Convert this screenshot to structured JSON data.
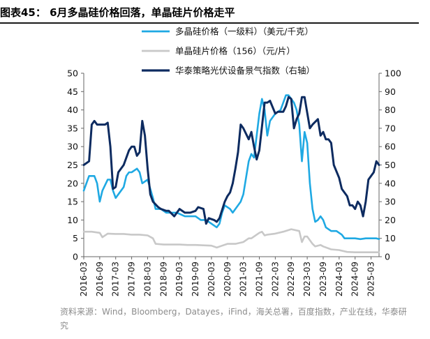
{
  "figure": {
    "title": "图表45： 6月多晶硅价格回落，单晶硅片价格走平",
    "source": "资料来源：Wind，Bloomberg，Datayes，iFind，海关总署，百度指数，产业在线，华泰研究"
  },
  "chart_data": {
    "type": "line",
    "title": "6月多晶硅价格回落，单晶硅片价格走平",
    "xlabel": "",
    "ylabel": "",
    "ylim": [
      0,
      50
    ],
    "y2lim": [
      0,
      100
    ],
    "yticks": [
      0,
      5,
      10,
      15,
      20,
      25,
      30,
      35,
      40,
      45,
      50
    ],
    "y2ticks": [
      0,
      10,
      20,
      30,
      40,
      50,
      60,
      70,
      80,
      90,
      100
    ],
    "xticks": [
      "2016-03",
      "2016-09",
      "2017-03",
      "2017-09",
      "2018-03",
      "2018-09",
      "2019-03",
      "2019-09",
      "2020-03",
      "2020-09",
      "2021-03",
      "2021-09",
      "2022-03",
      "2022-09",
      "2023-03",
      "2023-09",
      "2024-03",
      "2024-09",
      "2025-03"
    ],
    "x_range": [
      "2016-03",
      "2025-06"
    ],
    "legend_position": "top",
    "series": [
      {
        "name": "多晶硅价格（一级料）（美元/千克）",
        "axis": "left",
        "color": "#1fa9e3",
        "points": [
          [
            "2016-03",
            18
          ],
          [
            "2016-05",
            22
          ],
          [
            "2016-07",
            22
          ],
          [
            "2016-08",
            20
          ],
          [
            "2016-09",
            15
          ],
          [
            "2016-10",
            18
          ],
          [
            "2016-12",
            21
          ],
          [
            "2017-01",
            21
          ],
          [
            "2017-02",
            18
          ],
          [
            "2017-03",
            16
          ],
          [
            "2017-05",
            18
          ],
          [
            "2017-06",
            19
          ],
          [
            "2017-07",
            22
          ],
          [
            "2017-08",
            23
          ],
          [
            "2017-09",
            23
          ],
          [
            "2017-11",
            24
          ],
          [
            "2017-12",
            23
          ],
          [
            "2018-01",
            20
          ],
          [
            "2018-03",
            21
          ],
          [
            "2018-05",
            16
          ],
          [
            "2018-06",
            13
          ],
          [
            "2018-08",
            13
          ],
          [
            "2018-10",
            12
          ],
          [
            "2018-12",
            12
          ],
          [
            "2019-02",
            12
          ],
          [
            "2019-05",
            11
          ],
          [
            "2019-08",
            11
          ],
          [
            "2019-09",
            11
          ],
          [
            "2019-11",
            10
          ],
          [
            "2019-12",
            10
          ],
          [
            "2020-01",
            10
          ],
          [
            "2020-03",
            9
          ],
          [
            "2020-05",
            8
          ],
          [
            "2020-06",
            9
          ],
          [
            "2020-07",
            12
          ],
          [
            "2020-08",
            14
          ],
          [
            "2020-10",
            13
          ],
          [
            "2020-11",
            12
          ],
          [
            "2020-12",
            13
          ],
          [
            "2021-01",
            14
          ],
          [
            "2021-02",
            15
          ],
          [
            "2021-03",
            17
          ],
          [
            "2021-05",
            26
          ],
          [
            "2021-06",
            28
          ],
          [
            "2021-07",
            27
          ],
          [
            "2021-09",
            39
          ],
          [
            "2021-10",
            43
          ],
          [
            "2021-11",
            40
          ],
          [
            "2021-12",
            33
          ],
          [
            "2022-01",
            37
          ],
          [
            "2022-03",
            39
          ],
          [
            "2022-05",
            40
          ],
          [
            "2022-06",
            42
          ],
          [
            "2022-07",
            44
          ],
          [
            "2022-08",
            44
          ],
          [
            "2022-09",
            43
          ],
          [
            "2022-10",
            42
          ],
          [
            "2022-11",
            40
          ],
          [
            "2022-12",
            36
          ],
          [
            "2023-01",
            26
          ],
          [
            "2023-02",
            34
          ],
          [
            "2023-03",
            31
          ],
          [
            "2023-04",
            20
          ],
          [
            "2023-05",
            13
          ],
          [
            "2023-06",
            9.5
          ],
          [
            "2023-07",
            10
          ],
          [
            "2023-08",
            11
          ],
          [
            "2023-09",
            10
          ],
          [
            "2023-10",
            8
          ],
          [
            "2023-12",
            7
          ],
          [
            "2024-02",
            7
          ],
          [
            "2024-04",
            6
          ],
          [
            "2024-05",
            5
          ],
          [
            "2024-07",
            5
          ],
          [
            "2024-09",
            5
          ],
          [
            "2024-11",
            4.8
          ],
          [
            "2025-01",
            5
          ],
          [
            "2025-03",
            5
          ],
          [
            "2025-05",
            5
          ],
          [
            "2025-06",
            4.8
          ]
        ]
      },
      {
        "name": "单晶硅片价格（156）（元/片）",
        "axis": "left",
        "color": "#c8c8c8",
        "points": [
          [
            "2016-03",
            6.8
          ],
          [
            "2016-06",
            6.8
          ],
          [
            "2016-09",
            6.5
          ],
          [
            "2016-10",
            5.3
          ],
          [
            "2016-12",
            6.3
          ],
          [
            "2017-03",
            6.2
          ],
          [
            "2017-06",
            6.2
          ],
          [
            "2017-09",
            6.0
          ],
          [
            "2017-12",
            6.0
          ],
          [
            "2018-03",
            5.8
          ],
          [
            "2018-05",
            5.0
          ],
          [
            "2018-06",
            3.5
          ],
          [
            "2018-09",
            3.3
          ],
          [
            "2018-12",
            3.3
          ],
          [
            "2019-03",
            3.3
          ],
          [
            "2019-06",
            3.2
          ],
          [
            "2019-09",
            3.2
          ],
          [
            "2019-12",
            3.1
          ],
          [
            "2020-03",
            3.0
          ],
          [
            "2020-05",
            2.5
          ],
          [
            "2020-07",
            3.0
          ],
          [
            "2020-09",
            3.5
          ],
          [
            "2020-12",
            3.5
          ],
          [
            "2021-03",
            4.0
          ],
          [
            "2021-05",
            5.0
          ],
          [
            "2021-06",
            5.0
          ],
          [
            "2021-08",
            6.0
          ],
          [
            "2021-09",
            6.5
          ],
          [
            "2021-10",
            6.8
          ],
          [
            "2021-11",
            5.8
          ],
          [
            "2021-12",
            6.0
          ],
          [
            "2022-03",
            6.3
          ],
          [
            "2022-06",
            6.8
          ],
          [
            "2022-09",
            7.5
          ],
          [
            "2022-12",
            7.0
          ],
          [
            "2023-01",
            4.0
          ],
          [
            "2023-02",
            5.5
          ],
          [
            "2023-03",
            5.5
          ],
          [
            "2023-05",
            3.5
          ],
          [
            "2023-06",
            2.8
          ],
          [
            "2023-08",
            3.2
          ],
          [
            "2023-09",
            2.8
          ],
          [
            "2023-12",
            2.0
          ],
          [
            "2024-03",
            1.8
          ],
          [
            "2024-06",
            1.3
          ],
          [
            "2024-09",
            1.2
          ],
          [
            "2024-12",
            1.2
          ],
          [
            "2025-03",
            1.2
          ],
          [
            "2025-06",
            1.2
          ]
        ]
      },
      {
        "name": "华泰策略光伏设备景气指数（右轴）",
        "axis": "right",
        "color": "#0d2b60",
        "points": [
          [
            "2016-03",
            50
          ],
          [
            "2016-05",
            52
          ],
          [
            "2016-06",
            72
          ],
          [
            "2016-07",
            74
          ],
          [
            "2016-08",
            72
          ],
          [
            "2016-09",
            72
          ],
          [
            "2016-11",
            72
          ],
          [
            "2016-12",
            73
          ],
          [
            "2017-01",
            60
          ],
          [
            "2017-02",
            37
          ],
          [
            "2017-03",
            38
          ],
          [
            "2017-04",
            46
          ],
          [
            "2017-06",
            50
          ],
          [
            "2017-08",
            58
          ],
          [
            "2017-09",
            60
          ],
          [
            "2017-10",
            60
          ],
          [
            "2017-11",
            55
          ],
          [
            "2017-12",
            57
          ],
          [
            "2018-01",
            74
          ],
          [
            "2018-02",
            66
          ],
          [
            "2018-03",
            48
          ],
          [
            "2018-04",
            34
          ],
          [
            "2018-05",
            30
          ],
          [
            "2018-07",
            27
          ],
          [
            "2018-08",
            26
          ],
          [
            "2018-10",
            25
          ],
          [
            "2018-11",
            25
          ],
          [
            "2019-01",
            22
          ],
          [
            "2019-02",
            24
          ],
          [
            "2019-03",
            26
          ],
          [
            "2019-05",
            24
          ],
          [
            "2019-07",
            24
          ],
          [
            "2019-09",
            25
          ],
          [
            "2019-10",
            27
          ],
          [
            "2019-12",
            26
          ],
          [
            "2020-01",
            18
          ],
          [
            "2020-02",
            21
          ],
          [
            "2020-04",
            20
          ],
          [
            "2020-05",
            19
          ],
          [
            "2020-06",
            21
          ],
          [
            "2020-08",
            30
          ],
          [
            "2020-09",
            33
          ],
          [
            "2020-10",
            35
          ],
          [
            "2020-11",
            40
          ],
          [
            "2020-12",
            48
          ],
          [
            "2021-01",
            57
          ],
          [
            "2021-02",
            72
          ],
          [
            "2021-03",
            70
          ],
          [
            "2021-05",
            64
          ],
          [
            "2021-06",
            68
          ],
          [
            "2021-07",
            60
          ],
          [
            "2021-08",
            53
          ],
          [
            "2021-09",
            58
          ],
          [
            "2021-11",
            84
          ],
          [
            "2021-12",
            84
          ],
          [
            "2022-01",
            85
          ],
          [
            "2022-03",
            78
          ],
          [
            "2022-04",
            79
          ],
          [
            "2022-06",
            79
          ],
          [
            "2022-07",
            82
          ],
          [
            "2022-08",
            87
          ],
          [
            "2022-09",
            86
          ],
          [
            "2022-10",
            70
          ],
          [
            "2022-11",
            75
          ],
          [
            "2022-12",
            78
          ],
          [
            "2023-01",
            87
          ],
          [
            "2023-02",
            87
          ],
          [
            "2023-04",
            70
          ],
          [
            "2023-05",
            72
          ],
          [
            "2023-07",
            75
          ],
          [
            "2023-08",
            66
          ],
          [
            "2023-09",
            68
          ],
          [
            "2023-10",
            64
          ],
          [
            "2023-11",
            64
          ],
          [
            "2023-12",
            62
          ],
          [
            "2024-01",
            50
          ],
          [
            "2024-03",
            43
          ],
          [
            "2024-04",
            37
          ],
          [
            "2024-06",
            33
          ],
          [
            "2024-07",
            28
          ],
          [
            "2024-08",
            28
          ],
          [
            "2024-09",
            26
          ],
          [
            "2024-10",
            30
          ],
          [
            "2024-11",
            28
          ],
          [
            "2024-12",
            22
          ],
          [
            "2025-01",
            30
          ],
          [
            "2025-02",
            42
          ],
          [
            "2025-04",
            46
          ],
          [
            "2025-05",
            52
          ],
          [
            "2025-06",
            50
          ]
        ]
      }
    ]
  }
}
